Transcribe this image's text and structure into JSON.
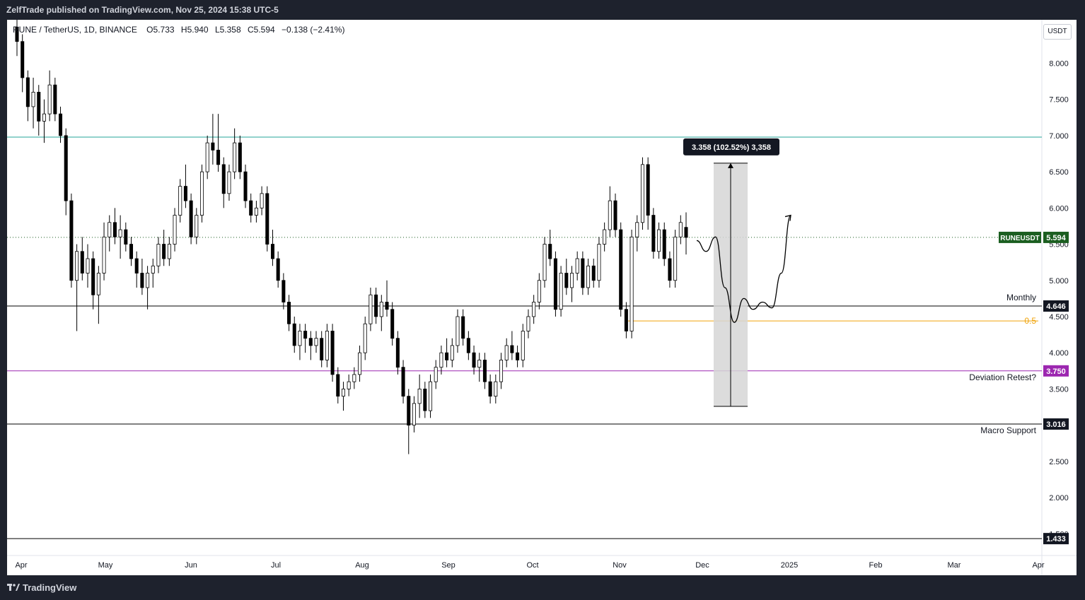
{
  "header": {
    "published": "ZelfTrade published on TradingView.com, Nov 25, 2024 15:38 UTC-5"
  },
  "legend": {
    "symbol": "RUNE / TetherUS, 1D, BINANCE",
    "o_label": "O",
    "o": "5.733",
    "h_label": "H",
    "h": "5.940",
    "l_label": "L",
    "l": "5.358",
    "c_label": "C",
    "c": "5.594",
    "change": "−0.138 (−2.41%)"
  },
  "currency": "USDT",
  "footer": {
    "brand": "TradingView",
    "brand_icon": "tradingview-logo-icon"
  },
  "colors": {
    "up": "#ffffff",
    "down": "#000000",
    "cyan_line": "#26a69a",
    "purple_line": "#9c27b0",
    "orange_line": "#f0a30a",
    "price_badge": "#1b5e20"
  },
  "chart_data": {
    "type": "candlestick",
    "symbol": "RUNEUSDT",
    "ylim": [
      1.2,
      8.6
    ],
    "y_ticks": [
      "8.000",
      "7.500",
      "7.000",
      "6.500",
      "6.000",
      "5.500",
      "5.000",
      "4.500",
      "4.000",
      "3.500",
      "2.500",
      "2.000",
      "1.500"
    ],
    "x_labels": [
      "Apr",
      "May",
      "Jun",
      "Jul",
      "Aug",
      "Sep",
      "Oct",
      "Nov",
      "Dec",
      "2025",
      "Feb",
      "Mar",
      "Apr"
    ],
    "price_label": {
      "name": "RUNEUSDT",
      "value": "5.594",
      "price": 5.594
    },
    "horizontal_levels": [
      {
        "price": 6.98,
        "label": "",
        "badge": "",
        "color": "cyan"
      },
      {
        "price": 4.646,
        "label": "Monthly",
        "badge": "4.646",
        "color": "black"
      },
      {
        "price": 4.44,
        "label": "0.5",
        "badge": "",
        "color": "orange"
      },
      {
        "price": 3.75,
        "label": "Deviation Retest?",
        "badge": "3.750",
        "color": "purple"
      },
      {
        "price": 3.016,
        "label": "Macro Support",
        "badge": "3.016",
        "color": "black"
      },
      {
        "price": 1.433,
        "label": "",
        "badge": "1.433",
        "color": "black"
      }
    ],
    "measure": {
      "label": "3.358 (102.52%) 3,358",
      "from_price": 3.26,
      "to_price": 6.62
    },
    "candles": [
      [
        8.5,
        8.6,
        8.1,
        8.3
      ],
      [
        8.3,
        8.4,
        7.6,
        7.8
      ],
      [
        7.8,
        7.9,
        7.2,
        7.4
      ],
      [
        7.4,
        7.8,
        7.1,
        7.6
      ],
      [
        7.6,
        7.7,
        7.0,
        7.2
      ],
      [
        7.2,
        7.5,
        6.9,
        7.3
      ],
      [
        7.3,
        7.9,
        7.2,
        7.7
      ],
      [
        7.7,
        7.8,
        7.2,
        7.3
      ],
      [
        7.3,
        7.4,
        6.9,
        7.0
      ],
      [
        7.0,
        7.1,
        5.9,
        6.1
      ],
      [
        6.1,
        6.2,
        4.9,
        5.0
      ],
      [
        5.0,
        5.5,
        4.3,
        5.4
      ],
      [
        5.4,
        5.6,
        5.0,
        5.1
      ],
      [
        5.1,
        5.5,
        4.9,
        5.3
      ],
      [
        5.3,
        5.4,
        4.6,
        4.8
      ],
      [
        4.8,
        5.2,
        4.4,
        5.1
      ],
      [
        5.1,
        5.8,
        5.0,
        5.6
      ],
      [
        5.6,
        5.9,
        5.4,
        5.8
      ],
      [
        5.8,
        6.0,
        5.5,
        5.6
      ],
      [
        5.6,
        5.9,
        5.3,
        5.7
      ],
      [
        5.7,
        5.8,
        5.4,
        5.5
      ],
      [
        5.5,
        5.6,
        5.2,
        5.3
      ],
      [
        5.3,
        5.4,
        4.9,
        5.1
      ],
      [
        5.1,
        5.3,
        4.8,
        4.9
      ],
      [
        4.9,
        5.2,
        4.6,
        5.1
      ],
      [
        5.1,
        5.3,
        4.9,
        5.2
      ],
      [
        5.2,
        5.6,
        5.1,
        5.5
      ],
      [
        5.5,
        5.7,
        5.2,
        5.3
      ],
      [
        5.3,
        5.6,
        5.2,
        5.5
      ],
      [
        5.5,
        6.0,
        5.4,
        5.9
      ],
      [
        5.9,
        6.4,
        5.8,
        6.3
      ],
      [
        6.3,
        6.6,
        6.0,
        6.1
      ],
      [
        6.1,
        6.2,
        5.5,
        5.6
      ],
      [
        5.6,
        6.0,
        5.5,
        5.9
      ],
      [
        5.9,
        6.6,
        5.8,
        6.5
      ],
      [
        6.5,
        7.0,
        6.4,
        6.9
      ],
      [
        6.9,
        7.3,
        6.6,
        6.8
      ],
      [
        6.8,
        7.3,
        6.5,
        6.6
      ],
      [
        6.6,
        6.7,
        6.0,
        6.2
      ],
      [
        6.2,
        6.6,
        6.1,
        6.5
      ],
      [
        6.5,
        7.1,
        6.4,
        6.9
      ],
      [
        6.9,
        7.0,
        6.4,
        6.5
      ],
      [
        6.5,
        6.6,
        6.0,
        6.1
      ],
      [
        6.1,
        6.2,
        5.8,
        5.9
      ],
      [
        5.9,
        6.1,
        5.8,
        6.0
      ],
      [
        6.0,
        6.3,
        5.9,
        6.2
      ],
      [
        6.2,
        6.3,
        5.4,
        5.5
      ],
      [
        5.5,
        5.7,
        5.2,
        5.3
      ],
      [
        5.3,
        5.4,
        4.9,
        5.0
      ],
      [
        5.0,
        5.1,
        4.6,
        4.7
      ],
      [
        4.7,
        4.8,
        4.3,
        4.4
      ],
      [
        4.4,
        4.5,
        4.0,
        4.1
      ],
      [
        4.1,
        4.4,
        3.9,
        4.3
      ],
      [
        4.3,
        4.4,
        4.0,
        4.2
      ],
      [
        4.2,
        4.3,
        3.9,
        4.1
      ],
      [
        4.1,
        4.3,
        4.0,
        4.2
      ],
      [
        4.2,
        4.3,
        3.8,
        3.9
      ],
      [
        3.9,
        4.4,
        3.8,
        4.3
      ],
      [
        4.3,
        4.4,
        3.6,
        3.7
      ],
      [
        3.7,
        3.8,
        3.3,
        3.4
      ],
      [
        3.4,
        3.6,
        3.2,
        3.5
      ],
      [
        3.5,
        3.7,
        3.4,
        3.6
      ],
      [
        3.6,
        3.8,
        3.5,
        3.7
      ],
      [
        3.7,
        4.1,
        3.6,
        4.0
      ],
      [
        4.0,
        4.5,
        3.9,
        4.4
      ],
      [
        4.4,
        4.9,
        4.3,
        4.8
      ],
      [
        4.8,
        4.9,
        4.4,
        4.5
      ],
      [
        4.5,
        4.8,
        4.3,
        4.7
      ],
      [
        4.7,
        5.0,
        4.5,
        4.6
      ],
      [
        4.6,
        4.7,
        4.1,
        4.2
      ],
      [
        4.2,
        4.3,
        3.7,
        3.8
      ],
      [
        3.8,
        3.9,
        3.3,
        3.4
      ],
      [
        3.4,
        3.5,
        2.6,
        3.0
      ],
      [
        3.0,
        3.4,
        2.9,
        3.3
      ],
      [
        3.3,
        3.7,
        3.1,
        3.5
      ],
      [
        3.5,
        3.6,
        3.1,
        3.2
      ],
      [
        3.2,
        3.7,
        3.1,
        3.6
      ],
      [
        3.6,
        3.9,
        3.5,
        3.8
      ],
      [
        3.8,
        4.1,
        3.7,
        4.0
      ],
      [
        4.0,
        4.2,
        3.8,
        3.9
      ],
      [
        3.9,
        4.2,
        3.8,
        4.1
      ],
      [
        4.1,
        4.6,
        4.0,
        4.5
      ],
      [
        4.5,
        4.6,
        4.1,
        4.2
      ],
      [
        4.2,
        4.3,
        3.9,
        4.0
      ],
      [
        4.0,
        4.1,
        3.7,
        3.8
      ],
      [
        3.8,
        4.0,
        3.6,
        3.9
      ],
      [
        3.9,
        4.0,
        3.5,
        3.6
      ],
      [
        3.6,
        3.7,
        3.3,
        3.4
      ],
      [
        3.4,
        3.7,
        3.3,
        3.6
      ],
      [
        3.6,
        4.0,
        3.5,
        3.9
      ],
      [
        3.9,
        4.2,
        3.8,
        4.1
      ],
      [
        4.1,
        4.3,
        3.9,
        4.0
      ],
      [
        4.0,
        4.1,
        3.8,
        3.9
      ],
      [
        3.9,
        4.4,
        3.8,
        4.3
      ],
      [
        4.3,
        4.6,
        4.2,
        4.5
      ],
      [
        4.5,
        4.8,
        4.4,
        4.7
      ],
      [
        4.7,
        5.1,
        4.6,
        5.0
      ],
      [
        5.0,
        5.6,
        4.9,
        5.5
      ],
      [
        5.5,
        5.7,
        5.2,
        5.3
      ],
      [
        5.3,
        5.4,
        4.5,
        4.6
      ],
      [
        4.6,
        5.2,
        4.5,
        5.1
      ],
      [
        5.1,
        5.3,
        4.8,
        4.9
      ],
      [
        4.9,
        5.2,
        4.7,
        5.1
      ],
      [
        5.1,
        5.4,
        5.0,
        5.3
      ],
      [
        5.3,
        5.4,
        4.8,
        4.9
      ],
      [
        4.9,
        5.3,
        4.8,
        5.2
      ],
      [
        5.2,
        5.3,
        4.9,
        5.0
      ],
      [
        5.0,
        5.6,
        4.9,
        5.5
      ],
      [
        5.5,
        5.8,
        5.4,
        5.7
      ],
      [
        5.7,
        6.3,
        5.6,
        6.1
      ],
      [
        6.1,
        6.2,
        5.6,
        5.7
      ],
      [
        5.7,
        5.8,
        4.5,
        4.6
      ],
      [
        4.6,
        4.7,
        4.2,
        4.3
      ],
      [
        4.3,
        5.7,
        4.2,
        5.6
      ],
      [
        5.6,
        5.9,
        5.4,
        5.8
      ],
      [
        5.8,
        6.7,
        5.7,
        6.6
      ],
      [
        6.6,
        6.7,
        5.7,
        5.9
      ],
      [
        5.9,
        6.0,
        5.3,
        5.4
      ],
      [
        5.4,
        5.8,
        5.3,
        5.7
      ],
      [
        5.7,
        5.8,
        5.2,
        5.3
      ],
      [
        5.3,
        5.4,
        4.9,
        5.0
      ],
      [
        5.0,
        5.7,
        4.9,
        5.6
      ],
      [
        5.6,
        5.9,
        5.5,
        5.8
      ],
      [
        5.733,
        5.94,
        5.358,
        5.594
      ]
    ],
    "projection_path": [
      [
        0,
        5.55
      ],
      [
        1,
        5.4
      ],
      [
        2,
        5.6
      ],
      [
        3,
        4.9
      ],
      [
        4,
        4.42
      ],
      [
        5,
        4.75
      ],
      [
        6,
        4.6
      ],
      [
        7,
        4.7
      ],
      [
        8,
        4.62
      ],
      [
        9,
        5.1
      ],
      [
        10,
        5.9
      ]
    ]
  }
}
